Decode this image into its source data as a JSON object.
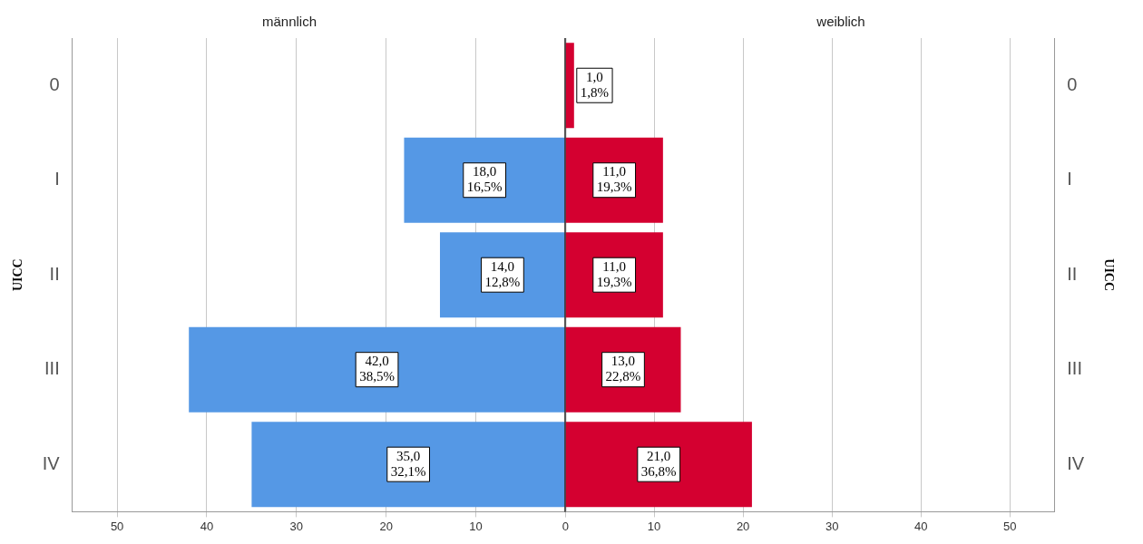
{
  "chart_data": [
    {
      "type": "bar",
      "orientation": "horizontal",
      "title": "männlich",
      "ylabel": "UICC",
      "categories": [
        "0",
        "I",
        "II",
        "III",
        "IV"
      ],
      "series": [
        {
          "color": "#5598e5",
          "values": [
            null,
            18,
            14,
            42,
            35
          ],
          "value_labels": [
            null,
            "18,0\n16,5%",
            "14,0\n12,8%",
            "42,0\n38,5%",
            "35,0\n32,1%"
          ]
        }
      ],
      "xlim": [
        55,
        0
      ],
      "xticks": [
        50,
        40,
        30,
        20,
        10,
        0
      ],
      "grid": "x",
      "legend": false
    },
    {
      "type": "bar",
      "orientation": "horizontal",
      "title": "weiblich",
      "ylabel": "UICC",
      "categories": [
        "0",
        "I",
        "II",
        "III",
        "IV"
      ],
      "series": [
        {
          "color": "#d40030",
          "values": [
            1,
            11,
            11,
            13,
            21
          ],
          "value_labels": [
            "1,0\n1,8%",
            "11,0\n19,3%",
            "11,0\n19,3%",
            "13,0\n22,8%",
            "21,0\n36,8%"
          ]
        }
      ],
      "xlim": [
        0,
        55
      ],
      "xticks": [
        {
          "value": 0,
          "label": null
        },
        10,
        20,
        30,
        40,
        50
      ],
      "grid": "x",
      "legend": false
    }
  ]
}
